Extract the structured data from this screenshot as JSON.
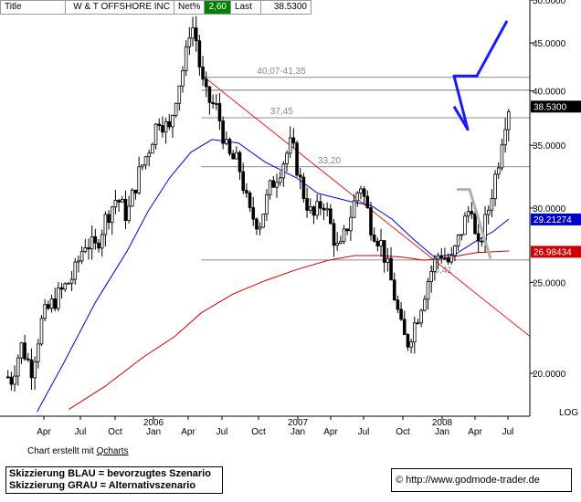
{
  "header": {
    "title_label": "Title",
    "name": "W & T OFFSHORE INC",
    "netp_label": "Net%",
    "netp_value": "2,60",
    "last_label": "Last",
    "last_value": "38.5300"
  },
  "footer": {
    "credit_prefix": "Chart erstellt mit",
    "credit_link": "Qcharts",
    "legend_line1": "Skizzierung BLAU = bevorzugtes Szenario",
    "legend_line2": "Skizzierung GRAU = Alternativszenario",
    "url": "http://www.godmode-trader.de"
  },
  "colors": {
    "candles": "#000000",
    "ma_fast": "#0000cc",
    "ma_slow": "#cc0000",
    "trendline": "#e02020",
    "scenario_blue": "#1a1aff",
    "scenario_gray": "#b0b0b0",
    "label_last_bg": "#000000",
    "label_fast_bg": "#0000cc",
    "label_slow_bg": "#cc0000"
  },
  "chart_data": {
    "type": "candlestick",
    "scale": "log",
    "ylim": [
      18.0,
      50.0
    ],
    "y_ticks": [
      "50.0000",
      "45.0000",
      "40.0000",
      "35.0000",
      "30.0000",
      "25.0000",
      "20.0000"
    ],
    "y_scale_label": "LOG",
    "x_month_ticks": [
      "Apr",
      "Jul",
      "Oct",
      "Jan",
      "Apr",
      "Jul",
      "Oct",
      "Jan",
      "Apr",
      "Jul",
      "Oct",
      "Jan",
      "Apr",
      "Jul"
    ],
    "x_year_labels": [
      "2006",
      "2007",
      "2008"
    ],
    "last_price_label": "38.5300",
    "ma_fast_label": "29.21274",
    "ma_slow_label": "26.98434",
    "horizontal_levels": [
      {
        "value": 41.35,
        "label": "40,07-41,35"
      },
      {
        "value": 40.07,
        "label": ""
      },
      {
        "value": 37.45,
        "label": "37,45"
      },
      {
        "value": 33.2,
        "label": "33,20"
      },
      {
        "value": 26.41,
        "label": "26,41"
      }
    ],
    "trendline": [
      {
        "x": 0.385,
        "y": 41.4
      },
      {
        "x": 1.0,
        "y": 21.9
      }
    ],
    "close_path": [
      [
        0.0,
        20.5
      ],
      [
        0.02,
        19.6
      ],
      [
        0.04,
        21.4
      ],
      [
        0.06,
        20.2
      ],
      [
        0.08,
        22.9
      ],
      [
        0.1,
        23.8
      ],
      [
        0.12,
        24.6
      ],
      [
        0.14,
        25.5
      ],
      [
        0.16,
        27.6
      ],
      [
        0.18,
        27.2
      ],
      [
        0.2,
        29.3
      ],
      [
        0.22,
        30.8
      ],
      [
        0.24,
        29.4
      ],
      [
        0.26,
        32.4
      ],
      [
        0.28,
        34.6
      ],
      [
        0.3,
        37.5
      ],
      [
        0.32,
        36.2
      ],
      [
        0.33,
        39.2
      ],
      [
        0.35,
        43.2
      ],
      [
        0.36,
        47.5
      ],
      [
        0.37,
        45.4
      ],
      [
        0.38,
        41.1
      ],
      [
        0.39,
        39.3
      ],
      [
        0.41,
        38.2
      ],
      [
        0.43,
        34.1
      ],
      [
        0.45,
        33.5
      ],
      [
        0.47,
        29.6
      ],
      [
        0.49,
        28.9
      ],
      [
        0.51,
        31.5
      ],
      [
        0.53,
        33.2
      ],
      [
        0.55,
        35.2
      ],
      [
        0.57,
        31.4
      ],
      [
        0.59,
        29.2
      ],
      [
        0.61,
        30.6
      ],
      [
        0.63,
        27.9
      ],
      [
        0.64,
        26.8
      ],
      [
        0.66,
        29.3
      ],
      [
        0.68,
        31.9
      ],
      [
        0.7,
        28.8
      ],
      [
        0.72,
        27.4
      ],
      [
        0.74,
        24.8
      ],
      [
        0.76,
        21.9
      ],
      [
        0.77,
        21.6
      ],
      [
        0.79,
        23.2
      ],
      [
        0.81,
        25.4
      ],
      [
        0.83,
        27.0
      ],
      [
        0.85,
        26.1
      ],
      [
        0.87,
        28.3
      ],
      [
        0.89,
        30.4
      ],
      [
        0.9,
        26.6
      ],
      [
        0.92,
        29.6
      ],
      [
        0.94,
        33.5
      ],
      [
        0.95,
        36.6
      ],
      [
        0.96,
        38.5
      ]
    ],
    "ma_fast_path": [
      [
        0.07,
        18.2
      ],
      [
        0.12,
        20.5
      ],
      [
        0.18,
        23.8
      ],
      [
        0.24,
        27.0
      ],
      [
        0.28,
        29.8
      ],
      [
        0.32,
        32.3
      ],
      [
        0.36,
        34.4
      ],
      [
        0.4,
        35.5
      ],
      [
        0.45,
        35.2
      ],
      [
        0.5,
        33.6
      ],
      [
        0.56,
        32.3
      ],
      [
        0.6,
        31.1
      ],
      [
        0.66,
        30.5
      ],
      [
        0.7,
        30.2
      ],
      [
        0.74,
        29.2
      ],
      [
        0.78,
        27.8
      ],
      [
        0.82,
        26.6
      ],
      [
        0.86,
        26.8
      ],
      [
        0.9,
        27.7
      ],
      [
        0.93,
        28.3
      ],
      [
        0.96,
        29.2
      ]
    ],
    "ma_slow_path": [
      [
        0.13,
        18.3
      ],
      [
        0.2,
        19.4
      ],
      [
        0.27,
        20.8
      ],
      [
        0.33,
        21.9
      ],
      [
        0.38,
        23.2
      ],
      [
        0.44,
        24.3
      ],
      [
        0.5,
        25.1
      ],
      [
        0.56,
        25.8
      ],
      [
        0.62,
        26.4
      ],
      [
        0.67,
        26.7
      ],
      [
        0.72,
        26.7
      ],
      [
        0.76,
        26.6
      ],
      [
        0.8,
        26.4
      ],
      [
        0.85,
        26.6
      ],
      [
        0.9,
        26.9
      ],
      [
        0.96,
        27.0
      ]
    ],
    "scenario_blue": [
      [
        38.5
      ],
      [
        36.4
      ],
      [
        41.5
      ],
      [
        41.5
      ],
      [
        47.5
      ]
    ],
    "scenario_gray": [
      [
        31.4
      ],
      [
        31.4
      ],
      [
        26.5
      ]
    ]
  }
}
